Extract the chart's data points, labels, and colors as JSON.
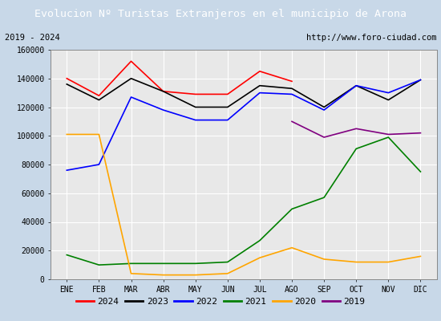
{
  "title": "Evolucion Nº Turistas Extranjeros en el municipio de Arona",
  "subtitle_left": "2019 - 2024",
  "subtitle_right": "http://www.foro-ciudad.com",
  "months": [
    "ENE",
    "FEB",
    "MAR",
    "ABR",
    "MAY",
    "JUN",
    "JUL",
    "AGO",
    "SEP",
    "OCT",
    "NOV",
    "DIC"
  ],
  "ylim": [
    0,
    160000
  ],
  "yticks": [
    0,
    20000,
    40000,
    60000,
    80000,
    100000,
    120000,
    140000,
    160000
  ],
  "series": {
    "2024": {
      "color": "red",
      "data": [
        140000,
        128000,
        152000,
        131000,
        129000,
        129000,
        145000,
        138000,
        null,
        null,
        null,
        null
      ]
    },
    "2023": {
      "color": "black",
      "data": [
        136000,
        125000,
        140000,
        131000,
        120000,
        120000,
        135000,
        133000,
        120000,
        135000,
        125000,
        139000
      ]
    },
    "2022": {
      "color": "blue",
      "data": [
        76000,
        80000,
        127000,
        118000,
        111000,
        111000,
        130000,
        129000,
        118000,
        135000,
        130000,
        139000
      ]
    },
    "2021": {
      "color": "green",
      "data": [
        17000,
        10000,
        11000,
        11000,
        11000,
        12000,
        27000,
        49000,
        57000,
        91000,
        99000,
        75000
      ]
    },
    "2020": {
      "color": "orange",
      "data": [
        101000,
        101000,
        4000,
        3000,
        3000,
        4000,
        15000,
        22000,
        14000,
        12000,
        12000,
        16000
      ]
    },
    "2019": {
      "color": "purple",
      "data": [
        null,
        null,
        null,
        null,
        null,
        null,
        null,
        110000,
        99000,
        105000,
        101000,
        102000
      ]
    }
  },
  "title_bg": "#4472C4",
  "title_color": "white",
  "plot_bg": "#E8E8E8",
  "outer_bg": "#C8D8E8",
  "border_color": "#4472C4",
  "grid_color": "#FFFFFF"
}
